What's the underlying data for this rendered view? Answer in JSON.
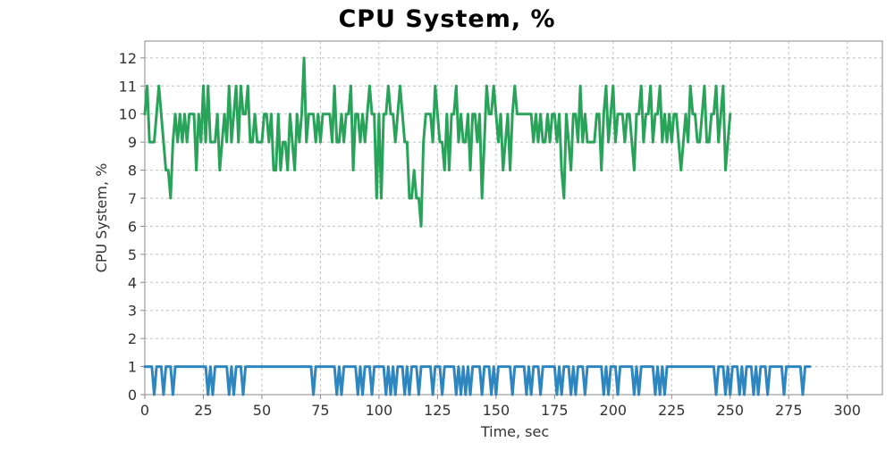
{
  "chart_data": {
    "type": "line",
    "title": "CPU System, %",
    "xlabel": "Time, sec",
    "ylabel": "CPU System, %",
    "xlim": [
      0,
      315
    ],
    "ylim": [
      0,
      12.6
    ],
    "xticks": [
      0,
      25,
      50,
      75,
      100,
      125,
      150,
      175,
      200,
      225,
      250,
      275,
      300
    ],
    "yticks": [
      0,
      1,
      2,
      3,
      4,
      5,
      6,
      7,
      8,
      9,
      10,
      11,
      12
    ],
    "grid": true,
    "series": [
      {
        "color": "#29a35a",
        "x_start": 0,
        "x_step": 1,
        "values": [
          10,
          11,
          9,
          9,
          9,
          10,
          11,
          10,
          9,
          8,
          8,
          7,
          9,
          10,
          9,
          10,
          9,
          10,
          9,
          10,
          10,
          10,
          8,
          10,
          9,
          11,
          9,
          11,
          9,
          9,
          9,
          10,
          8,
          9,
          10,
          9,
          11,
          9,
          10,
          11,
          9,
          11,
          10,
          10,
          11,
          9,
          9,
          10,
          9,
          9,
          9,
          10,
          10,
          9,
          10,
          8,
          8,
          10,
          8,
          9,
          9,
          8,
          10,
          9,
          8,
          10,
          9,
          10,
          12,
          9,
          10,
          10,
          10,
          9,
          10,
          9,
          10,
          10,
          10,
          10,
          9,
          11,
          9,
          9,
          10,
          9,
          10,
          10,
          11,
          8,
          10,
          10,
          9,
          10,
          9,
          10,
          11,
          10,
          10,
          7,
          10,
          7,
          10,
          10,
          11,
          10,
          10,
          9,
          10,
          11,
          10,
          9,
          9,
          7,
          7,
          8,
          7,
          7,
          6,
          9,
          10,
          10,
          10,
          9,
          11,
          10,
          9,
          9,
          8,
          10,
          8,
          10,
          10,
          11,
          9,
          10,
          9,
          9,
          10,
          8,
          10,
          10,
          9,
          10,
          7,
          9,
          11,
          10,
          10,
          11,
          10,
          9,
          10,
          8,
          9,
          10,
          8,
          10,
          11,
          10,
          10,
          10,
          10,
          10,
          10,
          10,
          9,
          10,
          9,
          10,
          9,
          9,
          10,
          9,
          10,
          10,
          9,
          10,
          8,
          7,
          10,
          9,
          8,
          10,
          10,
          9,
          11,
          9,
          10,
          9,
          9,
          9,
          9,
          10,
          10,
          8,
          10,
          11,
          9,
          10,
          11,
          9,
          10,
          10,
          10,
          9,
          10,
          10,
          9,
          8,
          10,
          10,
          11,
          9,
          10,
          10,
          11,
          9,
          10,
          10,
          11,
          9,
          10,
          9,
          10,
          9,
          10,
          10,
          9,
          8,
          9,
          10,
          9,
          11,
          10,
          10,
          9,
          9,
          10,
          11,
          9,
          9,
          10,
          10,
          11,
          9,
          10,
          11,
          8,
          9,
          10
        ],
        "note_on_length": "values span x 0..297 approx"
      },
      {
        "color": "#2e86c1",
        "x_start": 0,
        "x_step": 1,
        "values": [
          1,
          1,
          1,
          1,
          0,
          1,
          1,
          1,
          0,
          1,
          1,
          1,
          0,
          1,
          1,
          1,
          1,
          1,
          1,
          1,
          1,
          1,
          1,
          1,
          1,
          1,
          1,
          0,
          1,
          0,
          1,
          1,
          1,
          1,
          1,
          1,
          0,
          1,
          0,
          1,
          1,
          1,
          0,
          1,
          1,
          1,
          1,
          1,
          1,
          1,
          1,
          1,
          1,
          1,
          1,
          1,
          1,
          1,
          1,
          1,
          1,
          1,
          1,
          1,
          1,
          1,
          1,
          1,
          1,
          1,
          1,
          1,
          0,
          1,
          1,
          1,
          1,
          1,
          1,
          1,
          1,
          1,
          0,
          1,
          0,
          1,
          1,
          1,
          1,
          1,
          1,
          0,
          1,
          0,
          1,
          1,
          1,
          0,
          1,
          1,
          1,
          1,
          1,
          0,
          1,
          0,
          1,
          0,
          1,
          1,
          1,
          0,
          1,
          0,
          1,
          1,
          1,
          0,
          1,
          1,
          1,
          1,
          1,
          0,
          1,
          1,
          1,
          0,
          1,
          1,
          1,
          1,
          1,
          0,
          1,
          0,
          1,
          0,
          1,
          0,
          1,
          1,
          1,
          1,
          0,
          1,
          1,
          1,
          0,
          1,
          0,
          1,
          1,
          1,
          1,
          1,
          1,
          0,
          1,
          1,
          1,
          1,
          1,
          0,
          1,
          0,
          1,
          1,
          1,
          0,
          1,
          1,
          1,
          1,
          1,
          1,
          0,
          1,
          0,
          1,
          1,
          1,
          0,
          1,
          0,
          1,
          1,
          1,
          0,
          1,
          1,
          1,
          1,
          1,
          1,
          1,
          0,
          1,
          0,
          1,
          1,
          1,
          0,
          1,
          1,
          1,
          1,
          1,
          1,
          0,
          1,
          0,
          1,
          1,
          1,
          1,
          1,
          1,
          0,
          1,
          0,
          1,
          0,
          1,
          1,
          1,
          1,
          1,
          1,
          1,
          1,
          1,
          1,
          1,
          1,
          1,
          1,
          1,
          1,
          1,
          1,
          1,
          1,
          1,
          0,
          1,
          1,
          1,
          0,
          1,
          0,
          1,
          1,
          1,
          0,
          1,
          0,
          1,
          1,
          1,
          0,
          1,
          0,
          1,
          1,
          1,
          0,
          1,
          1,
          1,
          1,
          1,
          1,
          0,
          1,
          1,
          1,
          1,
          1,
          1,
          1,
          0,
          1,
          1,
          1
        ],
        "note_on_length": "values span x 0..297 approx"
      }
    ]
  }
}
